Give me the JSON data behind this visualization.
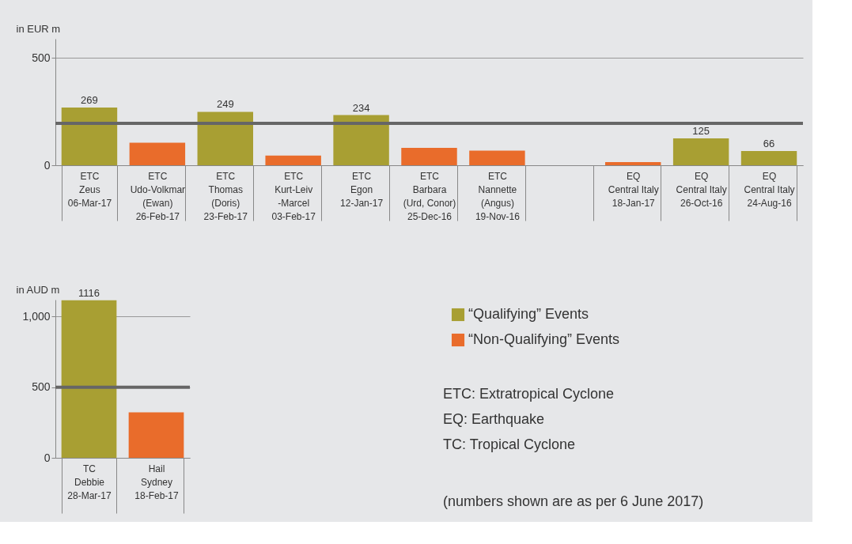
{
  "chart_data": [
    {
      "type": "bar",
      "ylabel": "in EUR m",
      "categories": [
        "ETC\nZeus\n\n06-Mar-17",
        "ETC\nUdo-Volkmar\n(Ewan)\n26-Feb-17",
        "ETC\nThomas\n(Doris)\n23-Feb-17",
        "ETC\nKurt-Leiv\n-Marcel\n03-Feb-17",
        "ETC\nEgon\n\n12-Jan-17",
        "ETC\nBarbara\n(Urd, Conor)\n25-Dec-16",
        "ETC\nNannette\n(Angus)\n19-Nov-16",
        null,
        "EQ\nCentral Italy\n\n18-Jan-17",
        "EQ\nCentral Italy\n\n26-Oct-16",
        "EQ\nCentral Italy\n\n24-Aug-16"
      ],
      "series": [
        {
          "color": "#a89f33",
          "values": [
            269,
            null,
            249,
            null,
            234,
            null,
            null,
            null,
            null,
            125,
            66
          ],
          "value_labels": [
            "269",
            null,
            "249",
            null,
            "234",
            null,
            null,
            null,
            null,
            "125",
            "66"
          ]
        },
        {
          "color": "#e96c2b",
          "values": [
            null,
            105,
            null,
            45,
            null,
            81,
            68,
            null,
            15,
            null,
            null
          ]
        }
      ],
      "ylim": [
        0,
        590
      ],
      "yticks": [
        0,
        500
      ],
      "grid": "y",
      "legend": false,
      "ref_lines": [
        {
          "axis": "y",
          "value": 195,
          "color": "#666666"
        }
      ]
    },
    {
      "type": "bar",
      "ylabel": "in AUD m",
      "categories": [
        "TC\nDebbie\n\n28-Mar-17",
        "Hail\nSydney\n\n18-Feb-17"
      ],
      "series": [
        {
          "name": "“Qualifying” Events",
          "color": "#a89f33",
          "values": [
            1116,
            null
          ],
          "value_labels": [
            "1116",
            null
          ]
        },
        {
          "name": "“Non-Qualifying” Events",
          "color": "#e96c2b",
          "values": [
            null,
            322
          ]
        }
      ],
      "ylim": [
        0,
        1120
      ],
      "yticks": [
        0,
        500,
        {
          "value": 1000,
          "label": "1,000"
        }
      ],
      "grid": "y",
      "legend": "right",
      "ref_lines": [
        {
          "axis": "y",
          "value": 500,
          "color": "#666666"
        }
      ],
      "annotations": [
        "ETC: Extratropical Cyclone",
        "EQ:   Earthquake",
        "TC:   Tropical Cyclone",
        "(numbers shown are as per 6 June 2017)"
      ]
    }
  ]
}
